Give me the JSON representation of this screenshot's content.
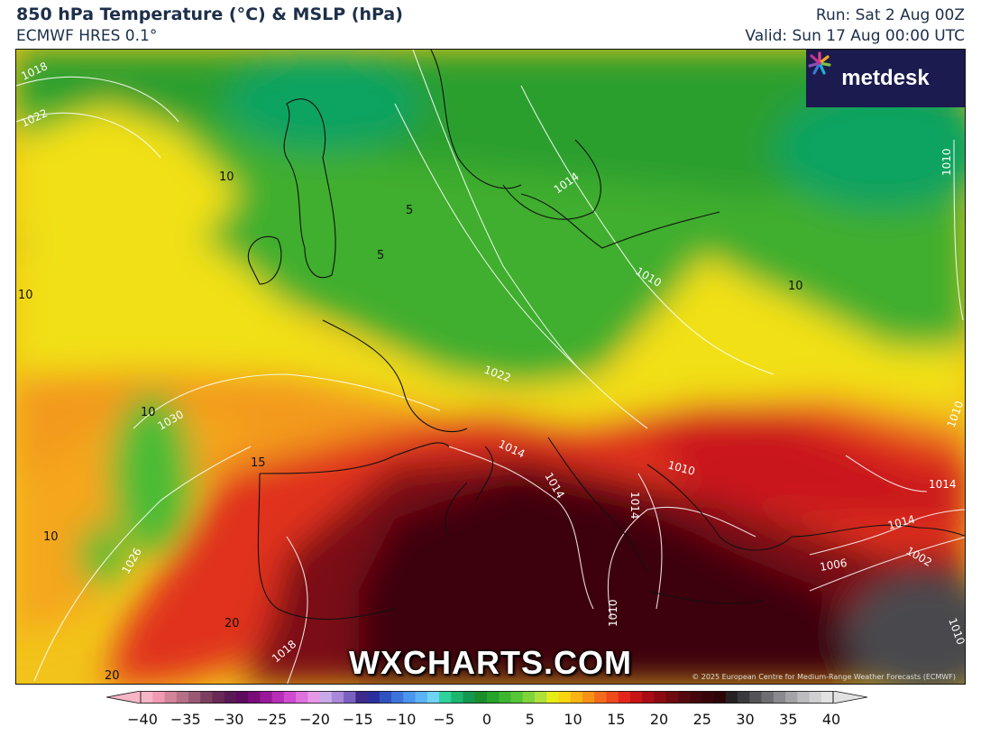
{
  "header": {
    "title": "850 hPa Temperature (°C) & MSLP (hPa)",
    "model": "ECMWF HRES 0.1°",
    "run": "Run: Sat 2 Aug 00Z",
    "valid": "Valid: Sun 17 Aug 00:00 UTC"
  },
  "logo": {
    "text": "metdesk",
    "icon": "metdesk-flower-icon"
  },
  "watermark": "WXCHARTS.COM",
  "credit": "© 2025 European Centre for Medium-Range Weather Forecasts (ECMWF)",
  "temperature_labels": [
    "10",
    "10",
    "10",
    "10",
    "15",
    "10",
    "20",
    "20",
    "5",
    "5"
  ],
  "isobar_labels": [
    "1018",
    "1022",
    "1014",
    "1010",
    "1010",
    "1022",
    "1030",
    "1014",
    "1014",
    "1014",
    "1010",
    "1010",
    "1014",
    "1014",
    "1006",
    "1002",
    "1010",
    "1018",
    "1026",
    "1010"
  ],
  "colorbar": {
    "tick_labels": [
      "−40",
      "−35",
      "−30",
      "−25",
      "−20",
      "−15",
      "−10",
      "−5",
      "0",
      "5",
      "10",
      "15",
      "20",
      "25",
      "30",
      "35",
      "40"
    ],
    "colors": [
      "#f7b5c6",
      "#f39ab3",
      "#d2849a",
      "#b57088",
      "#9a5a73",
      "#7d3f5f",
      "#6a2a55",
      "#5b1a55",
      "#5d0a5f",
      "#7a0c7a",
      "#9a189a",
      "#b82db8",
      "#d04bd0",
      "#de71de",
      "#e698e6",
      "#c9a9e9",
      "#a888d8",
      "#7a60c0",
      "#3d2a8a",
      "#2a2f9e",
      "#2f52c0",
      "#3c74dc",
      "#4a95ef",
      "#5ab4f5",
      "#6fd4f5",
      "#2fd29b",
      "#1bb56f",
      "#14974e",
      "#188e2c",
      "#26a32a",
      "#3cb52f",
      "#56c634",
      "#7fd43a",
      "#aee13a",
      "#e6ec16",
      "#fbd412",
      "#fbb413",
      "#f99115",
      "#f46c1b",
      "#ee4a1c",
      "#e3261c",
      "#c71414",
      "#a80c14",
      "#8b0a12",
      "#6e0a10",
      "#560a10",
      "#44080c",
      "#38060a",
      "#2d0508",
      "#262224",
      "#3a3a3e",
      "#545458",
      "#6e6e72",
      "#8a8a8e",
      "#a4a4a8",
      "#bcbcbf",
      "#d0d0d2",
      "#e2e2e3"
    ]
  }
}
